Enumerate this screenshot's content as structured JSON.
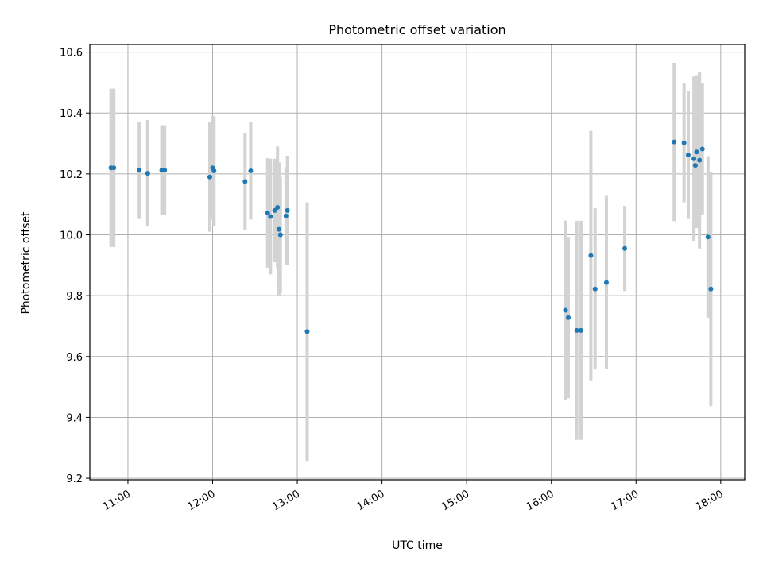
{
  "chart_data": {
    "type": "scatter",
    "title": "Photometric offset variation",
    "xlabel": "UTC time",
    "ylabel": "Photometric offset",
    "xlim": [
      "10:33",
      "18:17"
    ],
    "ylim": [
      9.195,
      10.625
    ],
    "x_ticks": [
      "11:00",
      "12:00",
      "13:00",
      "14:00",
      "15:00",
      "16:00",
      "17:00",
      "18:00"
    ],
    "y_ticks": [
      "9.2",
      "9.4",
      "9.6",
      "9.8",
      "10.0",
      "10.2",
      "10.4",
      "10.6"
    ],
    "grid": true,
    "colors": {
      "point": "#1f77b4",
      "errorbar": "#d3d3d3"
    },
    "series": [
      {
        "points": [
          {
            "time": "10:48",
            "y": 10.22,
            "yerr": 0.26
          },
          {
            "time": "10:50",
            "y": 10.22,
            "yerr": 0.26
          },
          {
            "time": "11:08",
            "y": 10.212,
            "yerr": 0.16
          },
          {
            "time": "11:14",
            "y": 10.202,
            "yerr": 0.175
          },
          {
            "time": "11:24",
            "y": 10.212,
            "yerr": 0.148
          },
          {
            "time": "11:26",
            "y": 10.212,
            "yerr": 0.148
          },
          {
            "time": "11:58",
            "y": 10.19,
            "yerr": 0.18
          },
          {
            "time": "12:00",
            "y": 10.22,
            "yerr": 0.17
          },
          {
            "time": "12:01",
            "y": 10.21,
            "yerr": 0.18
          },
          {
            "time": "12:23",
            "y": 10.175,
            "yerr": 0.16
          },
          {
            "time": "12:27",
            "y": 10.21,
            "yerr": 0.16
          },
          {
            "time": "12:39",
            "y": 10.072,
            "yerr": 0.18
          },
          {
            "time": "12:41",
            "y": 10.06,
            "yerr": 0.19
          },
          {
            "time": "12:44",
            "y": 10.08,
            "yerr": 0.17
          },
          {
            "time": "12:46",
            "y": 10.09,
            "yerr": 0.2
          },
          {
            "time": "12:47",
            "y": 10.018,
            "yerr": 0.22
          },
          {
            "time": "12:48",
            "y": 10.0,
            "yerr": 0.19
          },
          {
            "time": "12:52",
            "y": 10.062,
            "yerr": 0.16
          },
          {
            "time": "12:53",
            "y": 10.08,
            "yerr": 0.18
          },
          {
            "time": "13:07",
            "y": 9.682,
            "yerr": 0.425
          },
          {
            "time": "16:10",
            "y": 9.752,
            "yerr": 0.295
          },
          {
            "time": "16:12",
            "y": 9.728,
            "yerr": 0.265
          },
          {
            "time": "16:18",
            "y": 9.686,
            "yerr": 0.36
          },
          {
            "time": "16:21",
            "y": 9.686,
            "yerr": 0.36
          },
          {
            "time": "16:28",
            "y": 9.932,
            "yerr": 0.41
          },
          {
            "time": "16:31",
            "y": 9.822,
            "yerr": 0.265
          },
          {
            "time": "16:39",
            "y": 9.843,
            "yerr": 0.285
          },
          {
            "time": "16:52",
            "y": 9.955,
            "yerr": 0.14
          },
          {
            "time": "17:27",
            "y": 10.305,
            "yerr": 0.26
          },
          {
            "time": "17:34",
            "y": 10.302,
            "yerr": 0.195
          },
          {
            "time": "17:37",
            "y": 10.262,
            "yerr": 0.21
          },
          {
            "time": "17:41",
            "y": 10.25,
            "yerr": 0.27
          },
          {
            "time": "17:42",
            "y": 10.228,
            "yerr": 0.2
          },
          {
            "time": "17:43",
            "y": 10.272,
            "yerr": 0.25
          },
          {
            "time": "17:45",
            "y": 10.245,
            "yerr": 0.29
          },
          {
            "time": "17:47",
            "y": 10.282,
            "yerr": 0.215
          },
          {
            "time": "17:51",
            "y": 9.993,
            "yerr": 0.265
          },
          {
            "time": "17:53",
            "y": 9.822,
            "yerr": 0.385
          }
        ]
      }
    ]
  }
}
